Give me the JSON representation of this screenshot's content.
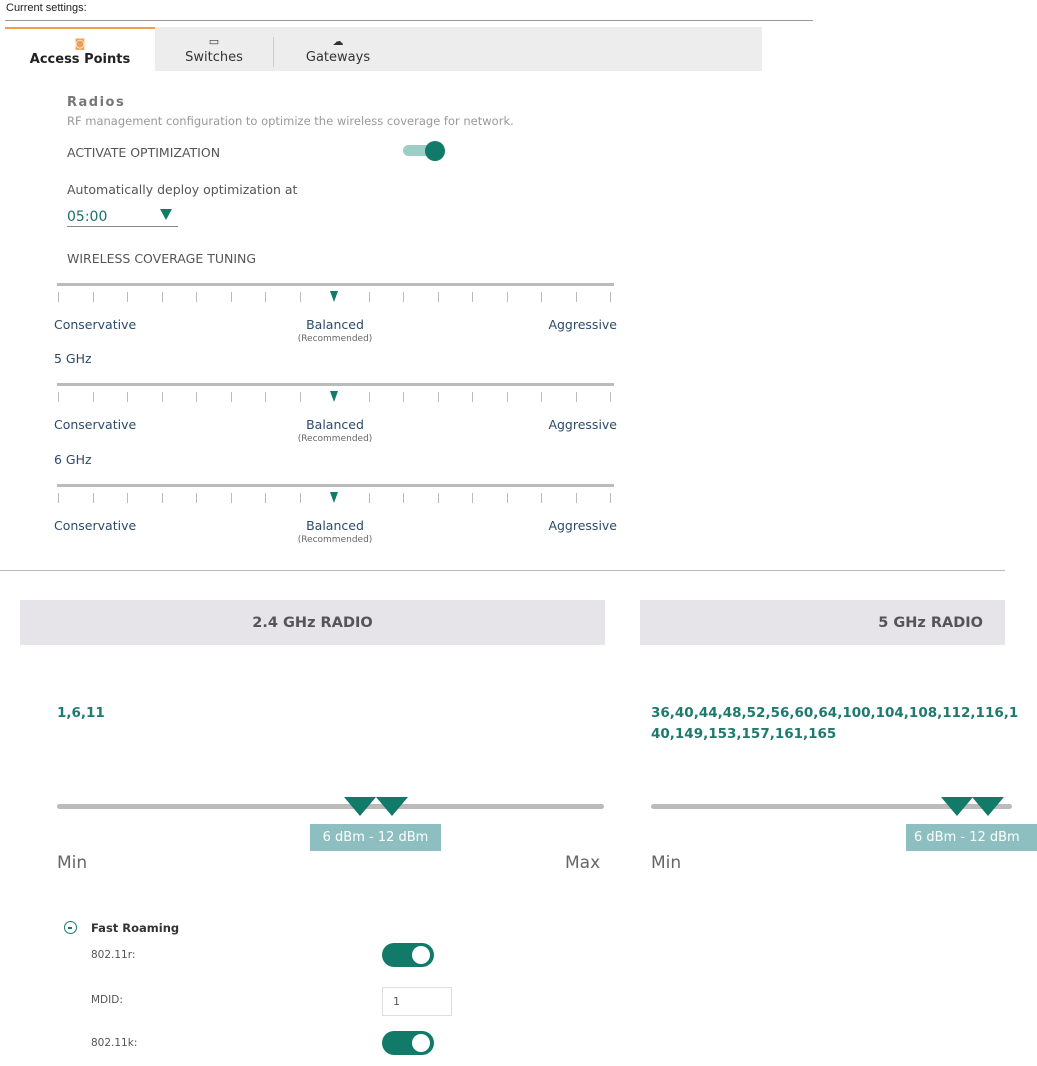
{
  "header": {
    "title": "Current settings:"
  },
  "tabs": [
    {
      "label": "Access Points",
      "icon": "access-point-icon",
      "active": true
    },
    {
      "label": "Switches",
      "icon": "switch-icon"
    },
    {
      "label": "Gateways",
      "icon": "gateway-cloud-icon"
    }
  ],
  "radios": {
    "title": "Radios",
    "description": "RF management configuration to optimize the wireless coverage for network.",
    "activate_label": "ACTIVATE OPTIMIZATION",
    "activate_on": true,
    "deploy_label": "Automatically deploy optimization at",
    "deploy_time": "05:00",
    "tuning_label": "WIRELESS COVERAGE TUNING",
    "sliders": [
      {
        "band": "",
        "value": "Balanced",
        "position": 8,
        "steps": 17,
        "left": "Conservative",
        "center": "Balanced",
        "center_note": "(Recommended)",
        "right": "Aggressive"
      },
      {
        "band": "5 GHz",
        "value": "Balanced",
        "position": 8,
        "steps": 17,
        "left": "Conservative",
        "center": "Balanced",
        "center_note": "(Recommended)",
        "right": "Aggressive"
      },
      {
        "band": "6 GHz",
        "value": "Balanced",
        "position": 8,
        "steps": 17,
        "left": "Conservative",
        "center": "Balanced",
        "center_note": "(Recommended)",
        "right": "Aggressive"
      }
    ]
  },
  "radio_panels": [
    {
      "title": "2.4 GHz RADIO",
      "channels": [
        "1,6,11"
      ],
      "range": "6 dBm - 12 dBm",
      "min": "Min",
      "max": "Max"
    },
    {
      "title": "5 GHz RADIO",
      "channels": [
        "36,40,44,48,52,56,60,64,100,104,108,112,116,1",
        "40,149,153,157,161,165"
      ],
      "range": "6 dBm - 12 dBm",
      "min": "Min"
    }
  ],
  "fast_roaming": {
    "title": "Fast Roaming",
    "r_label": "802.11r:",
    "r_on": true,
    "mdid_label": "MDID:",
    "mdid_value": "1",
    "k_label": "802.11k:",
    "k_on": true
  },
  "colors": {
    "accent": "#127a68",
    "tab_accent": "#f0a050",
    "range_box": "#8ebfc0"
  }
}
